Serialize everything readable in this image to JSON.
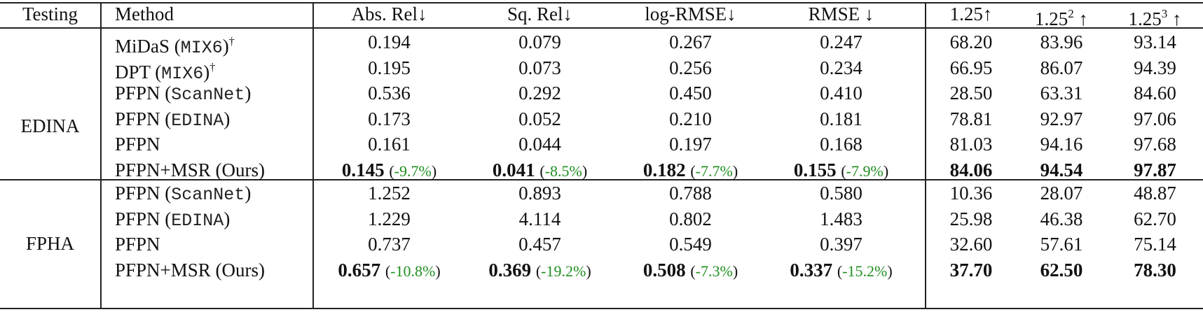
{
  "table": {
    "headers": {
      "testing": "Testing",
      "method": "Method",
      "abs_rel": "Abs. Rel↓",
      "sq_rel": "Sq. Rel↓",
      "log_rmse": "log-RMSE↓",
      "rmse": "RMSE ↓",
      "d1": "1.25↑",
      "d2_base": "1.25",
      "d2_exp": "2",
      "d2_arrow": " ↑",
      "d3_base": "1.25",
      "d3_exp": "3",
      "d3_arrow": " ↑"
    },
    "groups": [
      {
        "testing": "EDINA",
        "rows": [
          {
            "method": "MiDaS",
            "dataset": "MIX6",
            "dagger": "†",
            "abs_rel": "0.194",
            "sq_rel": "0.079",
            "log_rmse": "0.267",
            "rmse": "0.247",
            "d1": "68.20",
            "d2": "83.96",
            "d3": "93.14"
          },
          {
            "method": "DPT",
            "dataset": "MIX6",
            "dagger": "†",
            "abs_rel": "0.195",
            "sq_rel": "0.073",
            "log_rmse": "0.256",
            "rmse": "0.234",
            "d1": "66.95",
            "d2": "86.07",
            "d3": "94.39"
          },
          {
            "method": "PFPN",
            "dataset": "ScanNet",
            "abs_rel": "0.536",
            "sq_rel": "0.292",
            "log_rmse": "0.450",
            "rmse": "0.410",
            "d1": "28.50",
            "d2": "63.31",
            "d3": "84.60"
          },
          {
            "method": "PFPN",
            "dataset": "EDINA",
            "abs_rel": "0.173",
            "sq_rel": "0.052",
            "log_rmse": "0.210",
            "rmse": "0.181",
            "d1": "78.81",
            "d2": "92.97",
            "d3": "97.06"
          },
          {
            "method": "PFPN",
            "abs_rel": "0.161",
            "sq_rel": "0.044",
            "log_rmse": "0.197",
            "rmse": "0.168",
            "d1": "81.03",
            "d2": "94.16",
            "d3": "97.68"
          },
          {
            "method": "PFPN+MSR (Ours)",
            "best": true,
            "abs_rel": "0.145",
            "abs_rel_delta": "-9.7%",
            "sq_rel": "0.041",
            "sq_rel_delta": "-8.5%",
            "log_rmse": "0.182",
            "log_rmse_delta": "-7.7%",
            "rmse": "0.155",
            "rmse_delta": "-7.9%",
            "d1": "84.06",
            "d2": "94.54",
            "d3": "97.87"
          }
        ]
      },
      {
        "testing": "FPHA",
        "rows": [
          {
            "method": "PFPN",
            "dataset": "ScanNet",
            "abs_rel": "1.252",
            "sq_rel": "0.893",
            "log_rmse": "0.788",
            "rmse": "0.580",
            "d1": "10.36",
            "d2": "28.07",
            "d3": "48.87"
          },
          {
            "method": "PFPN",
            "dataset": "EDINA",
            "abs_rel": "1.229",
            "sq_rel": "4.114",
            "log_rmse": "0.802",
            "rmse": "1.483",
            "d1": "25.98",
            "d2": "46.38",
            "d3": "62.70"
          },
          {
            "method": "PFPN",
            "abs_rel": "0.737",
            "sq_rel": "0.457",
            "log_rmse": "0.549",
            "rmse": "0.397",
            "d1": "32.60",
            "d2": "57.61",
            "d3": "75.14"
          },
          {
            "method": "PFPN+MSR (Ours)",
            "best": true,
            "abs_rel": "0.657",
            "abs_rel_delta": "-10.8%",
            "sq_rel": "0.369",
            "sq_rel_delta": "-19.2%",
            "log_rmse": "0.508",
            "log_rmse_delta": "-7.3%",
            "rmse": "0.337",
            "rmse_delta": "-15.2%",
            "d1": "37.70",
            "d2": "62.50",
            "d3": "78.30"
          }
        ]
      }
    ],
    "colors": {
      "delta": "#1f8f1f",
      "rule": "#222222"
    }
  }
}
